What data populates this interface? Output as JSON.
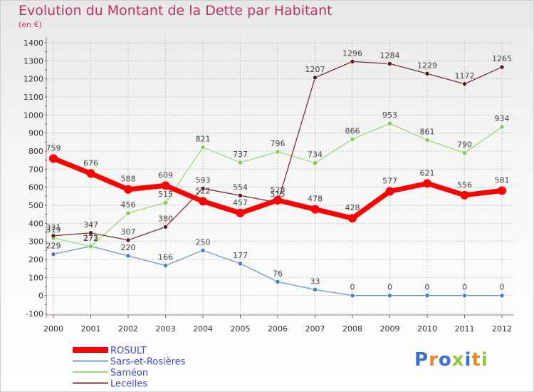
{
  "title": "Evolution du Montant de la Dette par Habitant",
  "subtitle": "(en €)",
  "logo": {
    "text": "Proxiti",
    "letter_colors": [
      "#3a6fd8",
      "#e8882a",
      "#3a6fd8",
      "#8fc83a",
      "#3a6fd8",
      "#e8882a",
      "#8fc83a"
    ]
  },
  "chart_data": {
    "type": "line",
    "title": "Evolution du Montant de la Dette par Habitant",
    "subtitle": "(en €)",
    "x": [
      "2000",
      "2001",
      "2002",
      "2003",
      "2004",
      "2005",
      "2006",
      "2007",
      "2008",
      "2009",
      "2010",
      "2011",
      "2012"
    ],
    "ylim": [
      -100,
      1400
    ],
    "yticks": [
      "-100",
      "0",
      "100",
      "200",
      "300",
      "400",
      "500",
      "600",
      "700",
      "800",
      "900",
      "1000",
      "1100",
      "1200",
      "1300",
      "1400"
    ],
    "grid": true,
    "legend": "bottom-left",
    "series": [
      {
        "name": "ROSULT",
        "color": "#ff0000",
        "marker": "#ff0000",
        "values": [
          759,
          676,
          588,
          609,
          522,
          457,
          528,
          478,
          428,
          577,
          621,
          556,
          581
        ],
        "labels": [
          "759",
          "676",
          "588",
          "609",
          "522",
          "457",
          "528",
          "478",
          "428",
          "577",
          "621",
          "556",
          "581"
        ]
      },
      {
        "name": "Sars-et-Rosières",
        "color": "#6a9ccf",
        "marker": "#3f7fc4",
        "values": [
          229,
          273,
          220,
          166,
          250,
          177,
          76,
          33,
          0,
          0,
          0,
          0,
          0
        ],
        "labels": [
          "229",
          "273",
          "220",
          "166",
          "250",
          "177",
          "76",
          "33",
          "0",
          "0",
          "0",
          "0",
          "0"
        ]
      },
      {
        "name": "Saméon",
        "color": "#99dd77",
        "marker": "#7ccc44",
        "values": [
          319,
          272,
          456,
          515,
          821,
          737,
          796,
          734,
          866,
          953,
          861,
          790,
          934
        ],
        "labels": [
          "319",
          "272",
          "456",
          "515",
          "821",
          "737",
          "796",
          "734",
          "866",
          "953",
          "861",
          "790",
          "934"
        ]
      },
      {
        "name": "Lecelles",
        "color": "#803030",
        "marker": "#5a1818",
        "values": [
          331,
          347,
          307,
          380,
          593,
          554,
          515,
          1207,
          1296,
          1284,
          1229,
          1172,
          1265
        ],
        "labels": [
          "331",
          "347",
          "307",
          "380",
          "593",
          "554",
          "515",
          "1207",
          "1296",
          "1284",
          "1229",
          "1172",
          "1265"
        ]
      }
    ]
  }
}
